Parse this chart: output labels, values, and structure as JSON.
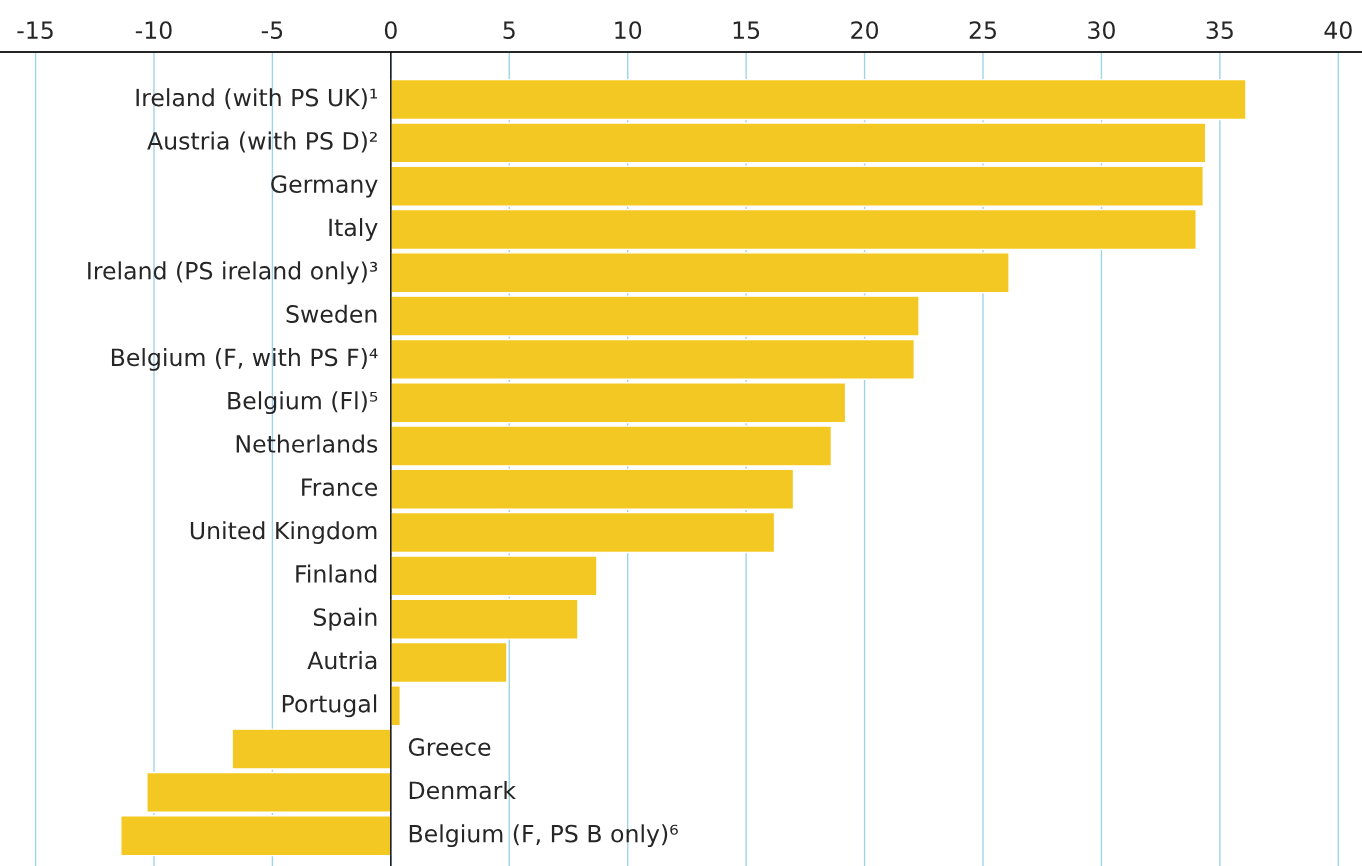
{
  "chart_data": {
    "type": "bar",
    "orientation": "horizontal",
    "categories": [
      "Ireland (with PS UK)¹",
      "Austria (with PS D)²",
      "Germany",
      "Italy",
      "Ireland (PS ireland only)³",
      "Sweden",
      "Belgium (F, with PS F)⁴",
      "Belgium (Fl)⁵",
      "Netherlands",
      "France",
      "United Kingdom",
      "Finland",
      "Spain",
      "Autria",
      "Portugal",
      "Greece",
      "Denmark",
      "Belgium (F, PS B only)⁶"
    ],
    "values": [
      36.1,
      34.4,
      34.3,
      34.0,
      26.1,
      22.3,
      22.1,
      19.2,
      18.6,
      17.0,
      16.2,
      8.7,
      7.9,
      4.9,
      0.4,
      -6.7,
      -10.3,
      -11.4
    ],
    "color": "#f4c823",
    "xlim": [
      -16.5,
      41
    ],
    "xticks": [
      -15,
      -10,
      -5,
      0,
      5,
      10,
      15,
      20,
      25,
      30,
      35,
      40
    ],
    "grid": "x"
  }
}
